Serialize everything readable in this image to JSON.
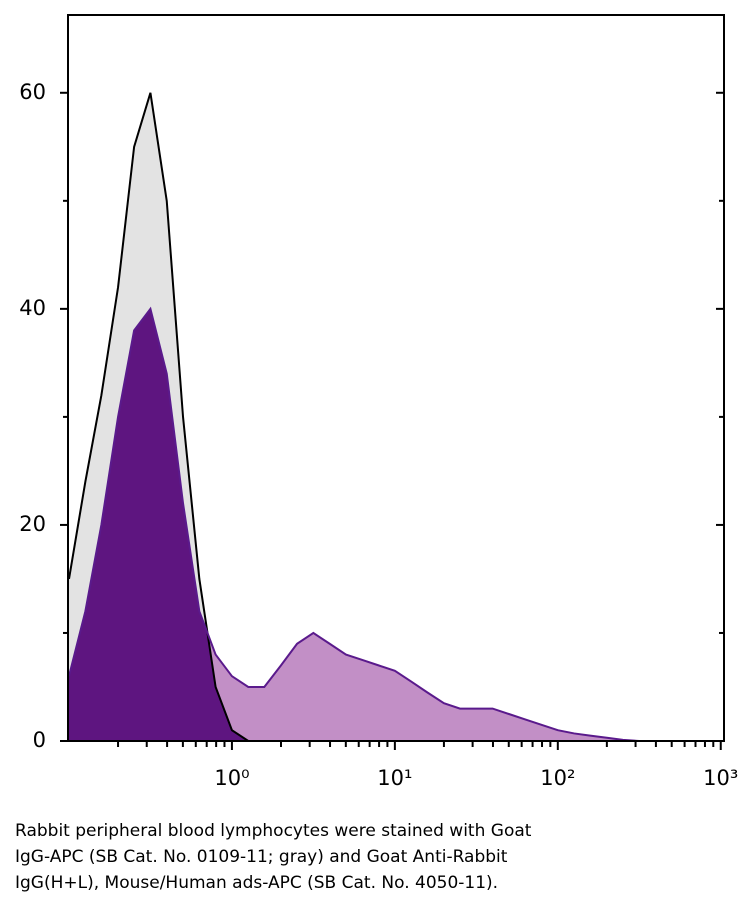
{
  "chart_data": {
    "type": "histogram",
    "x": [
      0.1,
      0.126,
      0.158,
      0.2,
      0.251,
      0.316,
      0.398,
      0.501,
      0.631,
      0.794,
      1,
      1.26,
      1.58,
      2,
      2.51,
      3.16,
      3.98,
      5.01,
      6.31,
      7.94,
      10,
      12.6,
      15.8,
      20,
      25.1,
      31.6,
      39.8,
      50.1,
      63.1,
      79.4,
      100,
      126,
      158,
      200,
      251,
      316
    ],
    "series": [
      {
        "color": "#000000",
        "fill": "#e3e3e3",
        "values": [
          15,
          24,
          32,
          42,
          55,
          60,
          50,
          30,
          15,
          5,
          1,
          0,
          0,
          0,
          0,
          0,
          0,
          0,
          0,
          0,
          0,
          0,
          0,
          0,
          0,
          0,
          0,
          0,
          0,
          0,
          0,
          0,
          0,
          0,
          0,
          0
        ]
      },
      {
        "color": "#5a1a8c",
        "fill": "#c28fc6",
        "overlap_fill": "#5e1580",
        "values": [
          6,
          12,
          20,
          30,
          38,
          40,
          34,
          22,
          12,
          8,
          6,
          5,
          5,
          7,
          9,
          10,
          9,
          8,
          7.5,
          7,
          6.5,
          5.5,
          4.5,
          3.5,
          3,
          3,
          3,
          2.5,
          2,
          1.5,
          1,
          0.7,
          0.5,
          0.3,
          0.1,
          0
        ]
      }
    ],
    "log_x": true,
    "xlim": [
      0.0986,
      1047
    ],
    "xticks": [
      {
        "value": 1,
        "label": "10⁰"
      },
      {
        "value": 10,
        "label": "10¹"
      },
      {
        "value": 100,
        "label": "10²"
      },
      {
        "value": 1000,
        "label": "10³"
      }
    ],
    "xminorticks": [
      0.2,
      0.3,
      0.4,
      0.5,
      0.6,
      0.7,
      0.8,
      0.9,
      2,
      3,
      4,
      5,
      6,
      7,
      8,
      9,
      20,
      30,
      40,
      50,
      60,
      70,
      80,
      90,
      200,
      300,
      400,
      500,
      600,
      700,
      800,
      900
    ],
    "ylim": [
      0,
      67.2
    ],
    "yticks": [
      0,
      20,
      40,
      60
    ],
    "yminorticks": [
      10,
      30,
      50
    ]
  },
  "caption": [
    "Rabbit peripheral blood lymphocytes were stained with Goat",
    "IgG-APC (SB Cat. No. 0109-11; gray) and Goat Anti-Rabbit",
    "IgG(H+L), Mouse/Human ads-APC (SB Cat. No. 4050-11)."
  ]
}
